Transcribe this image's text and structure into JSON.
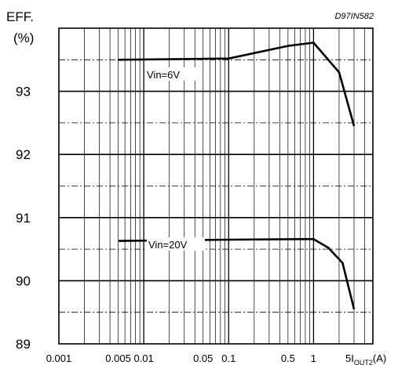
{
  "chart_data": {
    "type": "line",
    "code": "D97IN582",
    "ylabel_line1": "EFF.",
    "ylabel_line2": "(%)",
    "xlabel_prefix": "5",
    "xlabel_main": "I",
    "xlabel_sub": "OUT2",
    "xlabel_unit": "(A)",
    "x_scale": "log",
    "xlim": [
      0.001,
      5
    ],
    "ylim": [
      89,
      94
    ],
    "y_ticks": [
      89,
      90,
      91,
      92,
      93
    ],
    "y_tick_labels": [
      "89",
      "90",
      "91",
      "92",
      "93"
    ],
    "y_dashed_lines": [
      89.5,
      90.5,
      91.5,
      92.5,
      93.5
    ],
    "x_tick_labels": [
      {
        "value": 0.001,
        "label": "0.001"
      },
      {
        "value": 0.005,
        "label": "0.005"
      },
      {
        "value": 0.01,
        "label": "0.01"
      },
      {
        "value": 0.05,
        "label": "0.05"
      },
      {
        "value": 0.1,
        "label": "0.1"
      },
      {
        "value": 0.5,
        "label": "0.5"
      },
      {
        "value": 1,
        "label": "1"
      }
    ],
    "grid": true,
    "series": [
      {
        "name": "Vin=6V",
        "x": [
          0.005,
          0.1,
          0.5,
          1,
          2,
          3
        ],
        "y": [
          93.5,
          93.52,
          93.72,
          93.77,
          93.3,
          92.45
        ]
      },
      {
        "name": "Vin=20V",
        "x": [
          0.005,
          0.1,
          1,
          1.5,
          2.2,
          3
        ],
        "y": [
          90.63,
          90.65,
          90.66,
          90.52,
          90.28,
          89.55
        ]
      }
    ]
  }
}
